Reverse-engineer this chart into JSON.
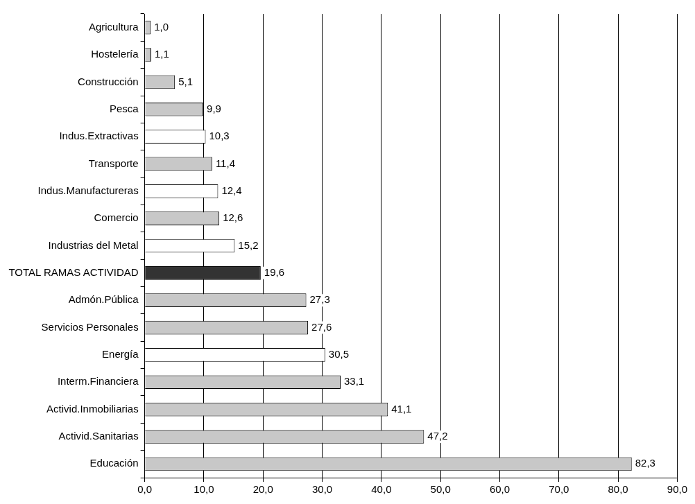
{
  "chart_data": {
    "type": "bar",
    "orientation": "horizontal",
    "categories": [
      "Agricultura",
      "Hostelería",
      "Construcción",
      "Pesca",
      "Indus.Extractivas",
      "Transporte",
      "Indus.Manufactureras",
      "Comercio",
      "Industrias del Metal",
      "TOTAL RAMAS ACTIVIDAD",
      "Admón.Pública",
      "Servicios Personales",
      "Energía",
      "Interm.Financiera",
      "Activid.Inmobiliarias",
      "Activid.Sanitarias",
      "Educación"
    ],
    "values": [
      1.0,
      1.1,
      5.1,
      9.9,
      10.3,
      11.4,
      12.4,
      12.6,
      15.2,
      19.6,
      27.3,
      27.6,
      30.5,
      33.1,
      41.1,
      47.2,
      82.3
    ],
    "value_labels": [
      "1,0",
      "1,1",
      "5,1",
      "9,9",
      "10,3",
      "11,4",
      "12,4",
      "12,6",
      "15,2",
      "19,6",
      "27,3",
      "27,6",
      "30,5",
      "33,1",
      "41,1",
      "47,2",
      "82,3"
    ],
    "colors": [
      "#c8c8c8",
      "#c8c8c8",
      "#c8c8c8",
      "#c8c8c8",
      "#ffffff",
      "#c8c8c8",
      "#ffffff",
      "#c8c8c8",
      "#ffffff",
      "#333333",
      "#c8c8c8",
      "#c8c8c8",
      "#ffffff",
      "#c8c8c8",
      "#c8c8c8",
      "#c8c8c8",
      "#c8c8c8"
    ],
    "xlim": [
      0,
      90
    ],
    "xticks": [
      {
        "value": 0,
        "label": "0,0"
      },
      {
        "value": 10,
        "label": "10,0"
      },
      {
        "value": 20,
        "label": "20,0"
      },
      {
        "value": 30,
        "label": "30,0"
      },
      {
        "value": 40,
        "label": "40,0"
      },
      {
        "value": 50,
        "label": "50,0"
      },
      {
        "value": 60,
        "label": "60,0"
      },
      {
        "value": 70,
        "label": "70,0"
      },
      {
        "value": 80,
        "label": "80,0"
      },
      {
        "value": 90,
        "label": "90,0"
      }
    ],
    "grid": "x",
    "legend": false
  }
}
